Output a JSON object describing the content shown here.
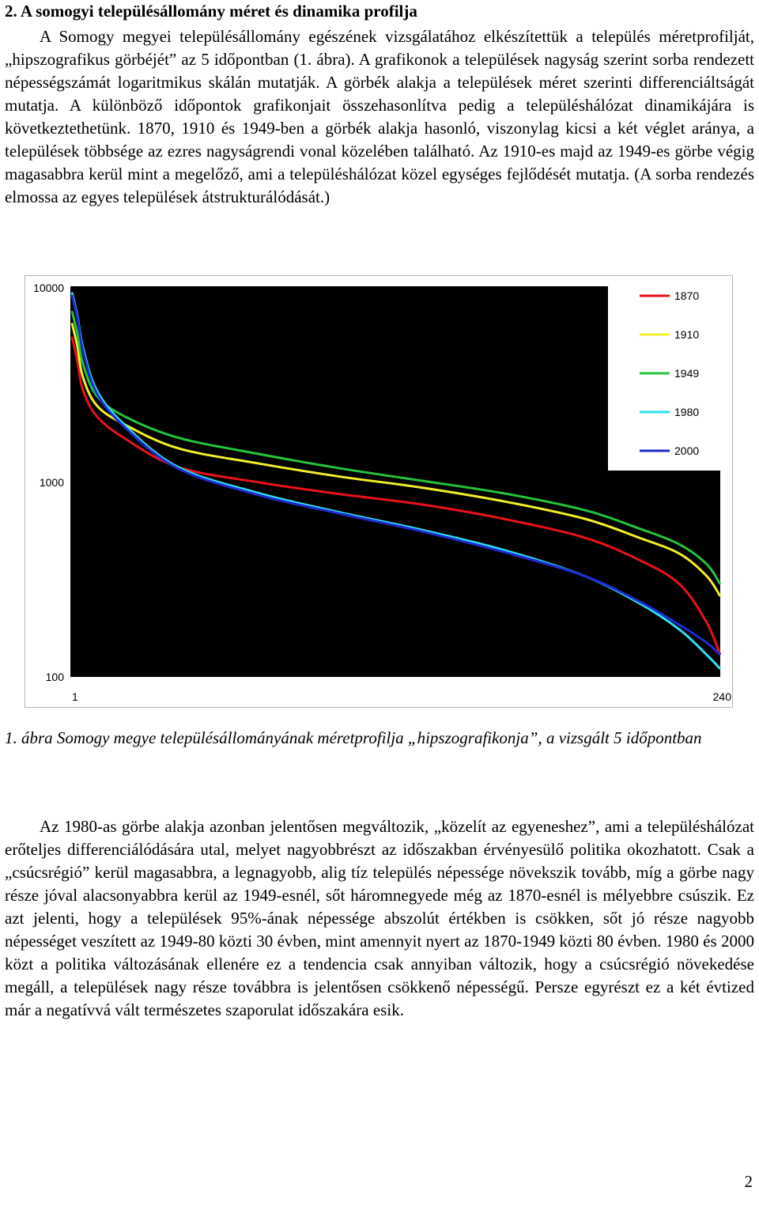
{
  "section": {
    "heading": "2.  A somogyi településállomány méret és dinamika profilja"
  },
  "paragraph1": "A Somogy megyei településállomány egészének vizsgálatához elkészítettük a település méretprofilját, „hipszografikus görbéjét” az 5 időpontban (1. ábra). A grafikonok a települések nagyság szerint sorba rendezett népességszámát logaritmikus skálán mutatják. A görbék alakja a települések méret szerinti differenciáltságát mutatja. A különböző időpontok grafikonjait összehasonlítva pedig a településhálózat dinamikájára is következtethetünk. 1870, 1910 és 1949-ben a görbék alakja hasonló, viszonylag kicsi a két véglet aránya, a települések többsége az ezres nagyságrendi vonal közelében található. Az 1910-es majd az 1949-es görbe végig magasabbra kerül mint a megelőző, ami a településhálózat közel egységes fejlődését mutatja. (A sorba rendezés elmossa az egyes települések átstrukturálódását.)",
  "chart_data": {
    "type": "line",
    "yscale": "log",
    "ylim": [
      100,
      10000
    ],
    "xlim": [
      1,
      240
    ],
    "y_tick_labels": [
      "10000",
      "1000",
      "100"
    ],
    "x_tick_labels": [
      "1",
      "240"
    ],
    "background": "#000000",
    "grid": false,
    "legend_position": "top-right",
    "x": [
      1,
      3,
      5,
      10,
      20,
      40,
      70,
      100,
      130,
      160,
      190,
      210,
      225,
      235,
      240
    ],
    "series": [
      {
        "name": "1870",
        "color": "#e8121a",
        "values": [
          5600,
          4200,
          3000,
          2200,
          1700,
          1200,
          1000,
          870,
          770,
          650,
          520,
          400,
          300,
          190,
          130
        ]
      },
      {
        "name": "1910",
        "color": "#f1ef2a",
        "values": [
          6600,
          5000,
          3500,
          2500,
          2000,
          1500,
          1250,
          1070,
          940,
          800,
          650,
          520,
          430,
          330,
          260
        ]
      },
      {
        "name": "1949",
        "color": "#25c43c",
        "values": [
          7600,
          5800,
          4100,
          2800,
          2200,
          1700,
          1400,
          1180,
          1020,
          880,
          720,
          580,
          480,
          380,
          300
        ]
      },
      {
        "name": "1980",
        "color": "#2ee0f0",
        "values": [
          9500,
          7200,
          5000,
          3000,
          2000,
          1200,
          880,
          700,
          570,
          450,
          330,
          240,
          175,
          130,
          110
        ]
      },
      {
        "name": "2000",
        "color": "#1e2bd0",
        "values": [
          9200,
          7000,
          4800,
          2900,
          1950,
          1180,
          860,
          690,
          560,
          440,
          330,
          245,
          185,
          150,
          130
        ]
      }
    ]
  },
  "caption": "1. ábra Somogy megye településállományának méretprofilja „hipszografikonja”, a vizsgált 5 időpontban",
  "paragraph2": "Az 1980-as görbe alakja azonban jelentősen megváltozik, „közelít az egyeneshez”, ami a településhálózat erőteljes differenciálódására utal, melyet nagyobbrészt az időszakban érvényesülő politika okozhatott. Csak a „csúcsrégió” kerül magasabbra, a legnagyobb, alig tíz település népessége növekszik tovább, míg a görbe nagy része jóval alacsonyabbra kerül az 1949-esnél, sőt háromnegyede még az 1870-esnél is mélyebbre csúszik. Ez azt jelenti, hogy a települések 95%-ának népessége abszolút értékben is csökken, sőt jó része nagyobb népességet veszített az 1949-80 közti 30 évben, mint amennyit nyert az 1870-1949 közti 80 évben. 1980 és 2000 közt a politika változásának ellenére ez a tendencia csak annyiban változik, hogy a csúcsrégió növekedése megáll, a települések nagy része továbbra is jelentősen csökkenő népességű. Persze egyrészt ez a két évtized már a negatívvá vált természetes szaporulat időszakára esik.",
  "page_number": "2"
}
